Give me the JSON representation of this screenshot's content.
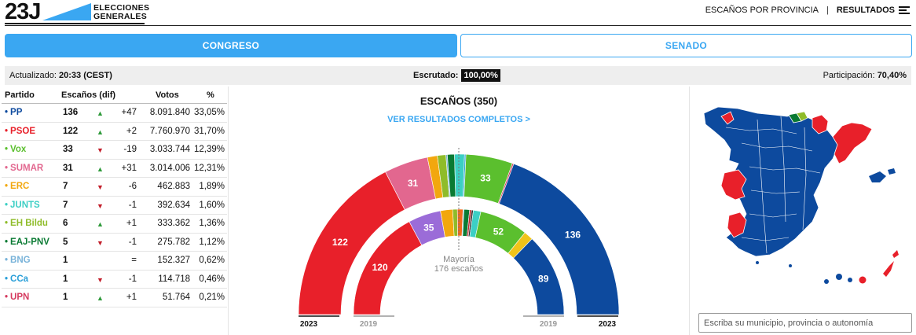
{
  "header": {
    "logo_main": "23J",
    "logo_line1": "ELECCIONES",
    "logo_line2": "GENERALES",
    "nav_provincia": "ESCAÑOS POR PROVINCIA",
    "nav_separator": "|",
    "nav_resultados": "RESULTADOS"
  },
  "tabs": {
    "congreso": "CONGRESO",
    "senado": "SENADO"
  },
  "info": {
    "updated_label": "Actualizado:",
    "updated_value": "20:33 (CEST)",
    "escrutado_label": "Escrutado:",
    "escrutado_value": "100,00%",
    "participacion_label": "Participación:",
    "participacion_value": "70,40%"
  },
  "table": {
    "headers": {
      "party": "Partido",
      "seats": "Escaños (dif)",
      "votes": "Votos",
      "pct": "%"
    },
    "rows": [
      {
        "party": "PP",
        "color": "#0d4a9e",
        "seats": "136",
        "trend": "up",
        "diff": "+47",
        "votes": "8.091.840",
        "pct": "33,05%"
      },
      {
        "party": "PSOE",
        "color": "#e8202a",
        "seats": "122",
        "trend": "up",
        "diff": "+2",
        "votes": "7.760.970",
        "pct": "31,70%"
      },
      {
        "party": "Vox",
        "color": "#5bbf2e",
        "seats": "33",
        "trend": "down",
        "diff": "-19",
        "votes": "3.033.744",
        "pct": "12,39%"
      },
      {
        "party": "SUMAR",
        "color": "#e2678f",
        "seats": "31",
        "trend": "up",
        "diff": "+31",
        "votes": "3.014.006",
        "pct": "12,31%"
      },
      {
        "party": "ERC",
        "color": "#f2a70e",
        "seats": "7",
        "trend": "down",
        "diff": "-6",
        "votes": "462.883",
        "pct": "1,89%"
      },
      {
        "party": "JUNTS",
        "color": "#3ccfc4",
        "seats": "7",
        "trend": "down",
        "diff": "-1",
        "votes": "392.634",
        "pct": "1,60%"
      },
      {
        "party": "EH Bildu",
        "color": "#8fbc2a",
        "seats": "6",
        "trend": "up",
        "diff": "+1",
        "votes": "333.362",
        "pct": "1,36%"
      },
      {
        "party": "EAJ-PNV",
        "color": "#0a7a33",
        "seats": "5",
        "trend": "down",
        "diff": "-1",
        "votes": "275.782",
        "pct": "1,12%"
      },
      {
        "party": "BNG",
        "color": "#79b3d9",
        "seats": "1",
        "trend": "",
        "diff": "=",
        "votes": "152.327",
        "pct": "0,62%"
      },
      {
        "party": "CCa",
        "color": "#2a9fd8",
        "seats": "1",
        "trend": "down",
        "diff": "-1",
        "votes": "114.718",
        "pct": "0,46%"
      },
      {
        "party": "UPN",
        "color": "#d53a5f",
        "seats": "1",
        "trend": "up",
        "diff": "+1",
        "votes": "51.764",
        "pct": "0,21%"
      }
    ]
  },
  "chart": {
    "title": "ESCAÑOS (350)",
    "link": "VER RESULTADOS COMPLETOS >",
    "majority_line1": "Mayoría",
    "majority_line2": "176 escaños",
    "outer_year": "2023",
    "inner_year": "2019"
  },
  "chart_data": {
    "type": "hemicycle",
    "title": "ESCAÑOS (350)",
    "total": 350,
    "majority": 176,
    "series": [
      {
        "name": "2023",
        "segments": [
          {
            "party": "PSOE",
            "seats": 122,
            "color": "#e8202a",
            "label": "122"
          },
          {
            "party": "SUMAR",
            "seats": 31,
            "color": "#e2678f",
            "label": "31"
          },
          {
            "party": "ERC",
            "seats": 7,
            "color": "#f2a70e"
          },
          {
            "party": "EH Bildu",
            "seats": 6,
            "color": "#8fbc2a"
          },
          {
            "party": "BNG",
            "seats": 1,
            "color": "#79b3d9"
          },
          {
            "party": "EAJ-PNV",
            "seats": 5,
            "color": "#0a7a33"
          },
          {
            "party": "JUNTS",
            "seats": 7,
            "color": "#3ccfc4"
          },
          {
            "party": "CCa",
            "seats": 1,
            "color": "#2a9fd8"
          },
          {
            "party": "Vox",
            "seats": 33,
            "color": "#5bbf2e",
            "label": "33"
          },
          {
            "party": "UPN",
            "seats": 1,
            "color": "#d53a5f"
          },
          {
            "party": "PP",
            "seats": 136,
            "color": "#0d4a9e",
            "label": "136"
          }
        ]
      },
      {
        "name": "2019",
        "segments": [
          {
            "seats": 120,
            "color": "#e8202a",
            "label": "120"
          },
          {
            "seats": 35,
            "color": "#9b6cd8",
            "label": "35"
          },
          {
            "seats": 13,
            "color": "#f2a70e"
          },
          {
            "seats": 5,
            "color": "#8fbc2a"
          },
          {
            "seats": 6,
            "color": "#f26a1c"
          },
          {
            "seats": 1,
            "color": "#79b3d9"
          },
          {
            "seats": 6,
            "color": "#0a7a33"
          },
          {
            "seats": 2,
            "color": "#c2262e"
          },
          {
            "seats": 2,
            "color": "#333333"
          },
          {
            "seats": 8,
            "color": "#3ccfc4"
          },
          {
            "seats": 52,
            "color": "#5bbf2e",
            "label": "52"
          },
          {
            "seats": 10,
            "color": "#f0c419"
          },
          {
            "seats": 89,
            "color": "#0d4a9e",
            "label": "89"
          }
        ]
      }
    ]
  },
  "map": {
    "search_placeholder": "Escriba su municipio, provincia o autonomía",
    "colors": {
      "pp": "#0d4a9e",
      "psoe": "#e8202a",
      "bildu": "#8fbc2a",
      "pnv": "#0a7a33"
    }
  }
}
